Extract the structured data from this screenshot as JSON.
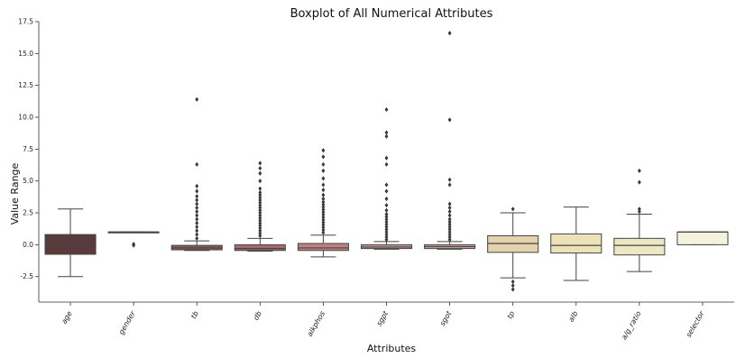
{
  "chart_data": {
    "type": "box",
    "title": "Boxplot of All Numerical Attributes",
    "xlabel": "Attributes",
    "ylabel": "Value Range",
    "ylim": [
      -4.5,
      17.5
    ],
    "yticks": [
      -2.5,
      0.0,
      2.5,
      5.0,
      7.5,
      10.0,
      12.5,
      15.0,
      17.5
    ],
    "ytick_labels": [
      "-2.5",
      "0.0",
      "2.5",
      "5.0",
      "7.5",
      "10.0",
      "12.5",
      "15.0",
      "17.5"
    ],
    "grid": false,
    "categories": [
      "age",
      "gender",
      "tb",
      "db",
      "alkphos",
      "sgpt",
      "sgot",
      "tp",
      "alb",
      "a/g_ratio",
      "selector"
    ],
    "boxes": [
      {
        "label": "age",
        "whislo": -2.5,
        "q1": -0.75,
        "med": 0.0,
        "q3": 0.8,
        "whishi": 2.8,
        "color": "#5a3a3a",
        "fliers": []
      },
      {
        "label": "gender",
        "whislo": 1.0,
        "q1": 1.0,
        "med": 1.0,
        "q3": 1.0,
        "whishi": 1.0,
        "color": "#6b4545",
        "fliers": [
          -0.05,
          0.05
        ]
      },
      {
        "label": "tb",
        "whislo": -0.45,
        "q1": -0.4,
        "med": -0.25,
        "q3": -0.05,
        "whishi": 0.3,
        "color": "#8c5a5a",
        "fliers": [
          0.5,
          0.8,
          1.1,
          1.4,
          1.7,
          2.0,
          2.3,
          2.6,
          2.9,
          3.2,
          3.5,
          3.8,
          4.2,
          4.6,
          6.3,
          11.4
        ]
      },
      {
        "label": "db",
        "whislo": -0.5,
        "q1": -0.45,
        "med": -0.3,
        "q3": 0.0,
        "whishi": 0.5,
        "color": "#a86b6b",
        "fliers": [
          0.7,
          0.9,
          1.1,
          1.3,
          1.5,
          1.7,
          1.9,
          2.1,
          2.3,
          2.5,
          2.7,
          2.9,
          3.1,
          3.3,
          3.5,
          3.7,
          3.9,
          4.1,
          4.4,
          5.0,
          5.6,
          6.0,
          6.4
        ]
      },
      {
        "label": "alkphos",
        "whislo": -0.95,
        "q1": -0.45,
        "med": -0.25,
        "q3": 0.1,
        "whishi": 0.75,
        "color": "#bd8383",
        "fliers": [
          0.95,
          1.15,
          1.35,
          1.55,
          1.75,
          1.95,
          2.15,
          2.35,
          2.55,
          2.75,
          2.95,
          3.15,
          3.35,
          3.6,
          3.9,
          4.3,
          4.7,
          5.2,
          5.8,
          6.3,
          6.9,
          7.4
        ]
      },
      {
        "label": "sgpt",
        "whislo": -0.35,
        "q1": -0.3,
        "med": -0.18,
        "q3": 0.0,
        "whishi": 0.25,
        "color": "#c99a9a",
        "fliers": [
          0.4,
          0.6,
          0.8,
          1.0,
          1.2,
          1.4,
          1.6,
          1.8,
          2.0,
          2.2,
          2.4,
          2.7,
          3.1,
          3.6,
          4.2,
          4.7,
          6.3,
          6.8,
          8.5,
          8.8,
          10.6
        ]
      },
      {
        "label": "sgot",
        "whislo": -0.35,
        "q1": -0.3,
        "med": -0.15,
        "q3": 0.0,
        "whishi": 0.25,
        "color": "#d2a9a3",
        "fliers": [
          0.4,
          0.6,
          0.8,
          1.0,
          1.2,
          1.4,
          1.6,
          1.8,
          2.0,
          2.3,
          2.6,
          2.9,
          3.2,
          4.7,
          5.1,
          9.8,
          16.6
        ]
      },
      {
        "label": "tp",
        "whislo": -2.6,
        "q1": -0.6,
        "med": 0.1,
        "q3": 0.7,
        "whishi": 2.5,
        "color": "#e3d2ac",
        "fliers": [
          -2.9,
          -3.2,
          -3.5,
          2.8
        ]
      },
      {
        "label": "alb",
        "whislo": -2.8,
        "q1": -0.65,
        "med": -0.05,
        "q3": 0.85,
        "whishi": 2.95,
        "color": "#ebe2b8",
        "fliers": []
      },
      {
        "label": "a/g_ratio",
        "whislo": -2.1,
        "q1": -0.8,
        "med": -0.05,
        "q3": 0.5,
        "whishi": 2.4,
        "color": "#ede8c4",
        "fliers": [
          2.6,
          2.8,
          4.9,
          5.8
        ]
      },
      {
        "label": "selector",
        "whislo": 0.0,
        "q1": 0.0,
        "med": 1.0,
        "q3": 1.0,
        "whishi": 1.0,
        "color": "#f4f1dc",
        "fliers": []
      }
    ]
  }
}
